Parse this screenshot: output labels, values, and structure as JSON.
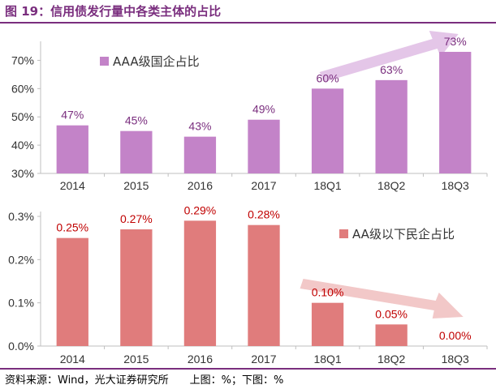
{
  "title": "图 19：信用债发行量中各类主体的占比",
  "source": "资料来源：Wind，光大证券研究所",
  "note": "上图：%；下图：%",
  "colors": {
    "title": "#7a2e7e",
    "top_bar": "#c383c8",
    "top_label": "#7a2e7e",
    "bottom_bar": "#e07c7c",
    "bottom_label": "#c00000",
    "top_arrow": "#e4c6e8",
    "bottom_arrow": "#f2c8c8"
  },
  "chart_data": [
    {
      "type": "bar",
      "categories": [
        "2014",
        "2015",
        "2016",
        "2017",
        "18Q1",
        "18Q2",
        "18Q3"
      ],
      "series": [
        {
          "name": "AAA级国企占比",
          "values": [
            47,
            45,
            43,
            49,
            60,
            63,
            73
          ]
        }
      ],
      "data_labels": [
        "47%",
        "45%",
        "43%",
        "49%",
        "60%",
        "63%",
        "73%"
      ],
      "ylim": [
        30,
        75
      ],
      "yticks": [
        30,
        40,
        50,
        60,
        70
      ],
      "ytick_labels": [
        "30%",
        "40%",
        "50%",
        "60%",
        "70%"
      ],
      "legend": "top-left",
      "grid": false,
      "trend_arrow": {
        "from": "18Q1",
        "to": "18Q3",
        "direction": "up"
      }
    },
    {
      "type": "bar",
      "categories": [
        "2014",
        "2015",
        "2016",
        "2017",
        "18Q1",
        "18Q2",
        "18Q3"
      ],
      "series": [
        {
          "name": "AA级以下民企占比",
          "values": [
            0.25,
            0.27,
            0.29,
            0.28,
            0.1,
            0.05,
            0.0
          ]
        }
      ],
      "data_labels": [
        "0.25%",
        "0.27%",
        "0.29%",
        "0.28%",
        "0.10%",
        "0.05%",
        "0.00%"
      ],
      "ylim": [
        0,
        0.3
      ],
      "yticks": [
        0,
        0.1,
        0.2,
        0.3
      ],
      "ytick_labels": [
        "0.0%",
        "0.1%",
        "0.2%",
        "0.3%"
      ],
      "legend": "top-right",
      "grid": false,
      "trend_arrow": {
        "from": "18Q1",
        "to": "18Q3",
        "direction": "down"
      }
    }
  ]
}
